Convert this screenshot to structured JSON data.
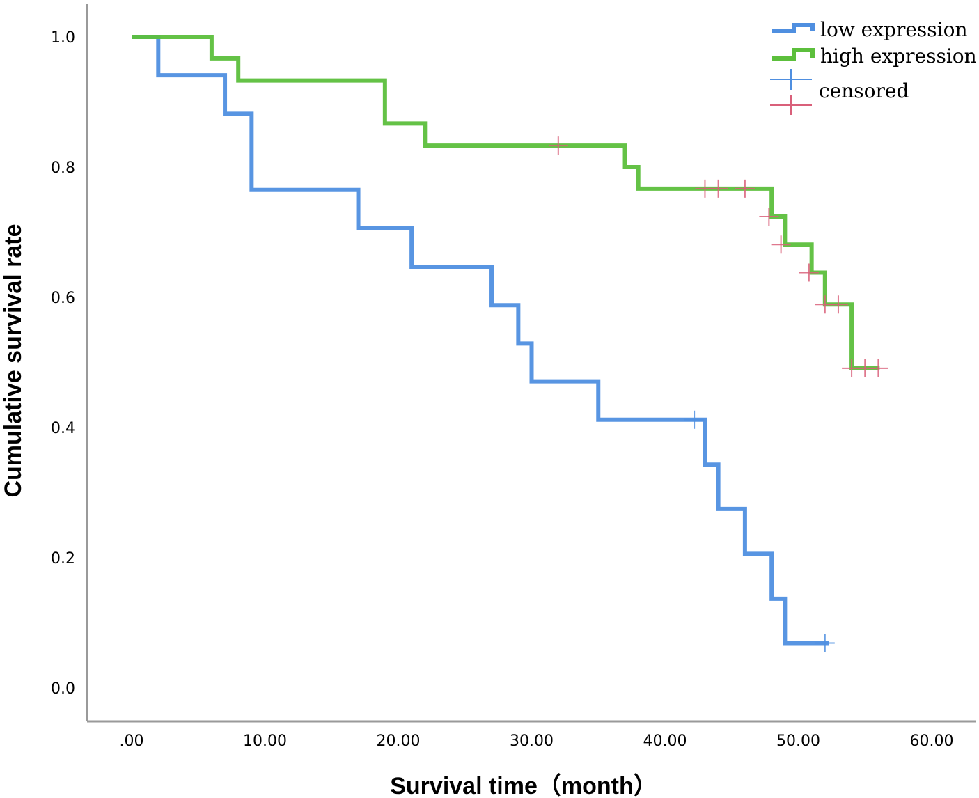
{
  "chart_data": {
    "type": "line",
    "subtype": "kaplan-meier step curve",
    "title": "",
    "xlabel": "Survival time（month）",
    "ylabel": "Cumulative survival rate",
    "xlim": [
      -3.2,
      63.5
    ],
    "ylim": [
      -0.05,
      1.05
    ],
    "x_ticks": [
      0,
      10,
      20,
      30,
      40,
      50,
      60
    ],
    "x_tick_labels": [
      ".00",
      "10.00",
      "20.00",
      "30.00",
      "40.00",
      "50.00",
      "60.00"
    ],
    "y_ticks": [
      0,
      0.2,
      0.4,
      0.6,
      0.8,
      1.0
    ],
    "y_tick_labels": [
      "0.0",
      "0.2",
      "0.4",
      "0.6",
      "0.8",
      "1.0"
    ],
    "grid": false,
    "legend_position": "top-right",
    "series": [
      {
        "name": "low  expression",
        "color": "#4f8fe0",
        "steps": [
          [
            0,
            1.0
          ],
          [
            2,
            0.941
          ],
          [
            7,
            0.882
          ],
          [
            9,
            0.765
          ],
          [
            17,
            0.706
          ],
          [
            21,
            0.647
          ],
          [
            27,
            0.588
          ],
          [
            29,
            0.529
          ],
          [
            30,
            0.471
          ],
          [
            35,
            0.412
          ],
          [
            43,
            0.343
          ],
          [
            44,
            0.275
          ],
          [
            46,
            0.206
          ],
          [
            48,
            0.137
          ],
          [
            49,
            0.069
          ]
        ],
        "end_x": 52.3,
        "censored": [
          [
            42.2,
            0.412
          ],
          [
            52,
            0.069
          ]
        ]
      },
      {
        "name": "high expression",
        "color": "#5cbf3c",
        "steps": [
          [
            0,
            1.0
          ],
          [
            6,
            0.967
          ],
          [
            8,
            0.933
          ],
          [
            19,
            0.867
          ],
          [
            22,
            0.833
          ],
          [
            37,
            0.8
          ],
          [
            38,
            0.767
          ],
          [
            48,
            0.724
          ],
          [
            49,
            0.681
          ],
          [
            51,
            0.638
          ],
          [
            52,
            0.589
          ],
          [
            54,
            0.491
          ]
        ],
        "end_x": 56.1,
        "censored": [
          [
            32,
            0.833
          ],
          [
            43,
            0.767
          ],
          [
            44,
            0.767
          ],
          [
            46,
            0.767
          ],
          [
            47.8,
            0.724
          ],
          [
            48.7,
            0.681
          ],
          [
            50.8,
            0.638
          ],
          [
            52,
            0.589
          ],
          [
            53,
            0.589
          ],
          [
            54,
            0.491
          ],
          [
            55,
            0.491
          ],
          [
            56,
            0.491
          ]
        ]
      }
    ],
    "legend": [
      {
        "label": "low  expression",
        "kind": "line",
        "color": "#4f8fe0"
      },
      {
        "label": "high expression",
        "kind": "line",
        "color": "#5cbf3c"
      },
      {
        "label": "censored",
        "kind": "censor-marks",
        "colors": [
          "#4f8fe0",
          "#d9607a"
        ]
      }
    ],
    "censor_color_high": "#d9607a",
    "censor_color_low": "#4f8fe0"
  }
}
